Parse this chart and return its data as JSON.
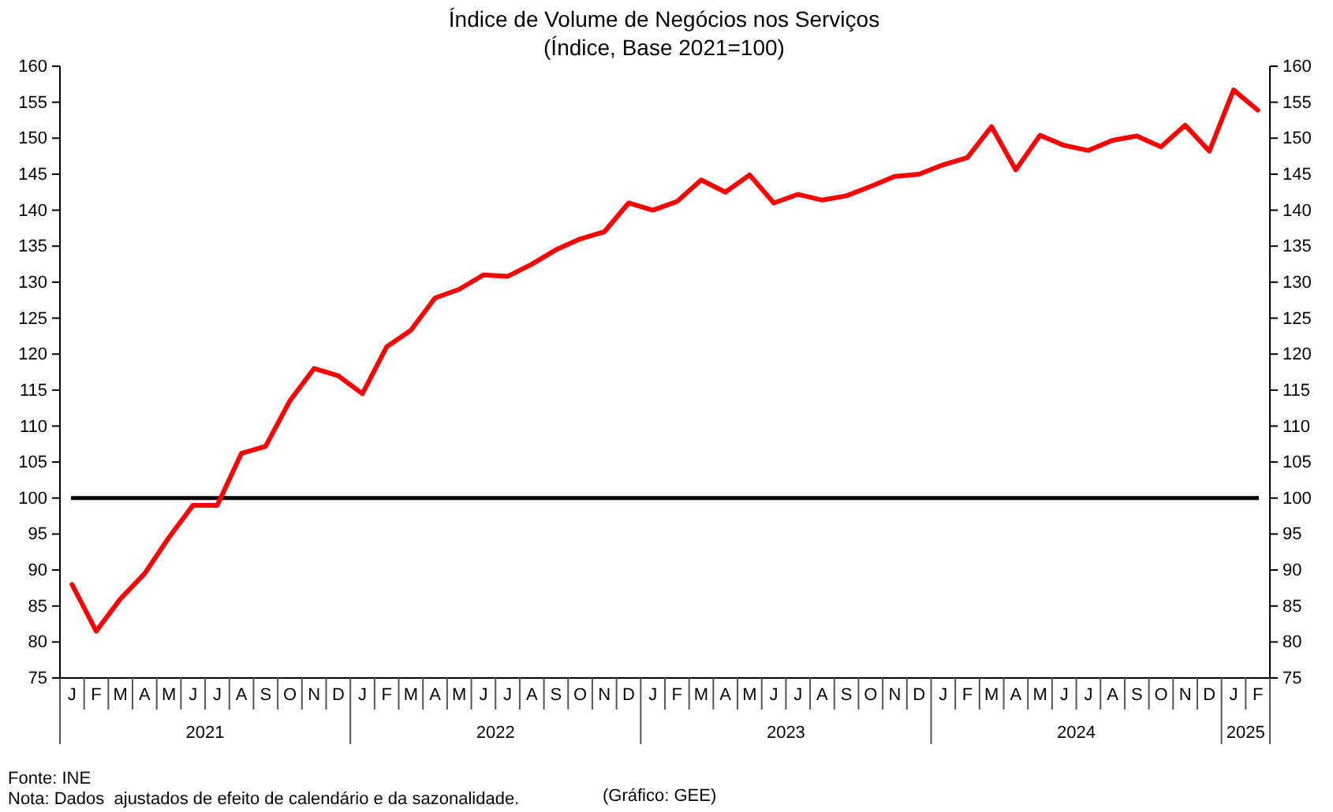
{
  "chart_data": {
    "type": "line",
    "title": "Índice de Volume de Negócios nos Serviços",
    "subtitle": "(Índice, Base 2021=100)",
    "categories": [
      "J",
      "F",
      "M",
      "A",
      "M",
      "J",
      "J",
      "A",
      "S",
      "O",
      "N",
      "D",
      "J",
      "F",
      "M",
      "A",
      "M",
      "J",
      "J",
      "A",
      "S",
      "O",
      "N",
      "D",
      "J",
      "F",
      "M",
      "A",
      "M",
      "J",
      "J",
      "A",
      "S",
      "O",
      "N",
      "D",
      "J",
      "F",
      "M",
      "A",
      "M",
      "J",
      "J",
      "A",
      "S",
      "O",
      "N",
      "D",
      "J",
      "F"
    ],
    "series": [
      {
        "color": "#ff0000",
        "values": [
          88,
          81.5,
          86,
          89.5,
          94.5,
          99,
          99,
          106.2,
          107.2,
          113.5,
          118,
          117,
          114.5,
          121,
          123.3,
          127.8,
          129,
          131,
          130.8,
          132.5,
          134.5,
          136,
          137,
          141,
          140,
          141.2,
          144.2,
          142.5,
          144.9,
          141,
          142.2,
          141.4,
          142,
          143.3,
          144.7,
          145,
          146.3,
          147.3,
          151.6,
          145.6,
          150.4,
          149,
          148.3,
          149.7,
          150.3,
          148.8,
          151.8,
          148.2,
          156.7,
          153.9
        ]
      }
    ],
    "ylim": [
      75,
      160
    ],
    "yticks": [
      75,
      80,
      85,
      90,
      95,
      100,
      105,
      110,
      115,
      120,
      125,
      130,
      135,
      140,
      145,
      150,
      155,
      160
    ],
    "y2lim": [
      75,
      160
    ],
    "y2ticks": [
      75,
      80,
      85,
      90,
      95,
      100,
      105,
      110,
      115,
      120,
      125,
      130,
      135,
      140,
      145,
      150,
      155,
      160
    ],
    "ref_lines": [
      {
        "axis": "y",
        "value": 100,
        "color": "#000000"
      }
    ],
    "line_style": "solid",
    "annotations": [
      "2021",
      "2022",
      "2023",
      "2024",
      "2025",
      "Fonte: INE",
      "Nota: Dados  ajustados de efeito de calendário e da sazonalidade.",
      "(Gráfico: GEE)"
    ]
  }
}
